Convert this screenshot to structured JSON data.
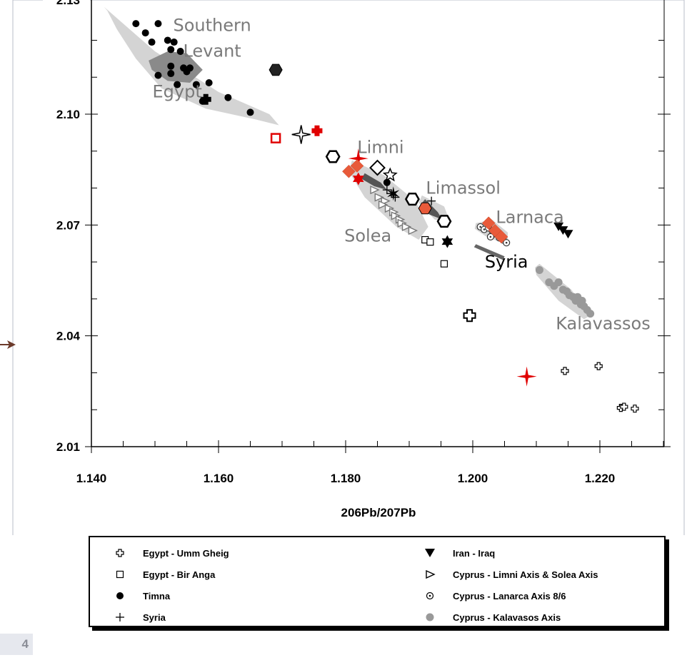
{
  "page_number": "4",
  "chart_data": {
    "type": "scatter",
    "title": "",
    "xlabel": "206Pb/207Pb",
    "ylabel": "",
    "xlim": [
      1.14,
      1.23
    ],
    "ylim": [
      2.01,
      2.125
    ],
    "x_ticks": [
      "1.140",
      "1.160",
      "1.180",
      "1.200",
      "1.220"
    ],
    "y_ticks": [
      "2.01",
      "2.04",
      "2.07",
      "2.10"
    ],
    "y_tick_values": [
      2.01,
      2.04,
      2.07,
      2.1
    ],
    "x_tick_values": [
      1.14,
      1.16,
      1.18,
      1.2,
      1.22
    ],
    "grid": false,
    "legend_position": "below plot",
    "field_labels": [
      {
        "text": "Southern",
        "x": 1.159,
        "y": 2.1225
      },
      {
        "text": "Levant",
        "x": 1.159,
        "y": 2.1155
      },
      {
        "text": "Egypt",
        "x": 1.1535,
        "y": 2.1045
      },
      {
        "text": "Limni",
        "x": 1.1855,
        "y": 2.0895
      },
      {
        "text": "Limassol",
        "x": 1.1985,
        "y": 2.0785
      },
      {
        "text": "Larnaca",
        "x": 1.209,
        "y": 2.0705
      },
      {
        "text": "Solea",
        "x": 1.1835,
        "y": 2.0655
      },
      {
        "text": "Syria",
        "x": 1.2053,
        "y": 2.0585
      },
      {
        "text": "Kalavassos",
        "x": 1.2205,
        "y": 2.0418
      }
    ],
    "fields": [
      {
        "name": "Egypt",
        "fill": "#d4d4d4",
        "outline": [
          [
            1.142,
            2.129
          ],
          [
            1.15,
            2.117
          ],
          [
            1.16,
            2.106
          ],
          [
            1.168,
            2.1
          ],
          [
            1.1695,
            2.097
          ],
          [
            1.166,
            2.0985
          ],
          [
            1.158,
            2.1015
          ],
          [
            1.151,
            2.107
          ],
          [
            1.147,
            2.115
          ],
          [
            1.144,
            2.123
          ],
          [
            1.1425,
            2.128
          ]
        ]
      },
      {
        "name": "Egypt core",
        "fill": "#8a8a8a",
        "outline": [
          [
            1.149,
            2.1145
          ],
          [
            1.152,
            2.117
          ],
          [
            1.155,
            2.1165
          ],
          [
            1.1575,
            2.112
          ],
          [
            1.1555,
            2.1085
          ],
          [
            1.152,
            2.109
          ],
          [
            1.1495,
            2.112
          ]
        ]
      },
      {
        "name": "Limni/Solea",
        "fill": "#d4d4d4",
        "outline": [
          [
            1.181,
            2.0875
          ],
          [
            1.186,
            2.0835
          ],
          [
            1.191,
            2.0765
          ],
          [
            1.193,
            2.0695
          ],
          [
            1.1915,
            2.066
          ],
          [
            1.188,
            2.0695
          ],
          [
            1.183,
            2.0775
          ],
          [
            1.1805,
            2.0845
          ]
        ]
      },
      {
        "name": "Limassol",
        "fill": "#d4d4d4",
        "outline": [
          [
            1.192,
            2.078
          ],
          [
            1.1955,
            2.075
          ],
          [
            1.1965,
            2.0705
          ],
          [
            1.194,
            2.0715
          ],
          [
            1.1915,
            2.076
          ]
        ]
      },
      {
        "name": "Limassol core",
        "fill": "#555555",
        "outline": [
          [
            1.1925,
            2.077
          ],
          [
            1.1945,
            2.0735
          ],
          [
            1.1952,
            2.0715
          ],
          [
            1.1932,
            2.0728
          ],
          [
            1.1918,
            2.0755
          ]
        ]
      },
      {
        "name": "Limni core",
        "fill": "#555555",
        "outline": [
          [
            1.183,
            2.084
          ],
          [
            1.1855,
            2.0815
          ],
          [
            1.1865,
            2.0795
          ],
          [
            1.1845,
            2.0805
          ],
          [
            1.1825,
            2.0825
          ]
        ]
      },
      {
        "name": "Larnaca",
        "fill": "#d4d4d4",
        "outline": [
          [
            1.2005,
            2.0705
          ],
          [
            1.203,
            2.0715
          ],
          [
            1.2055,
            2.068
          ],
          [
            1.2055,
            2.0645
          ],
          [
            1.202,
            2.067
          ],
          [
            1.2003,
            2.069
          ]
        ]
      },
      {
        "name": "Syria",
        "fill": "#666666",
        "outline": [
          [
            1.2005,
            2.0648
          ],
          [
            1.205,
            2.0615
          ],
          [
            1.2048,
            2.0605
          ],
          [
            1.2002,
            2.064
          ]
        ]
      },
      {
        "name": "Kalavassos",
        "fill": "#d4d4d4",
        "outline": [
          [
            1.2105,
            2.0595
          ],
          [
            1.2155,
            2.0525
          ],
          [
            1.2185,
            2.0455
          ],
          [
            1.2175,
            2.0445
          ],
          [
            1.2135,
            2.0495
          ],
          [
            1.21,
            2.0565
          ],
          [
            1.2098,
            2.0585
          ]
        ]
      }
    ],
    "series": [
      {
        "name": "Egypt - Umm Gheig",
        "marker": "open-cross",
        "color": "#000000",
        "points": [
          [
            1.2145,
            2.0305
          ],
          [
            1.2198,
            2.0318
          ],
          [
            1.2233,
            2.0205
          ],
          [
            1.2238,
            2.0208
          ],
          [
            1.2255,
            2.0203
          ]
        ]
      },
      {
        "name": "Egypt - Bir Anga",
        "marker": "open-square",
        "color": "#000000",
        "points": [
          [
            1.1925,
            2.066
          ],
          [
            1.1933,
            2.0654
          ],
          [
            1.1955,
            2.0595
          ]
        ]
      },
      {
        "name": "Timna",
        "marker": "filled-circle",
        "color": "#000000",
        "points": [
          [
            1.147,
            2.1245
          ],
          [
            1.1485,
            2.122
          ],
          [
            1.1505,
            2.1245
          ],
          [
            1.1495,
            2.1195
          ],
          [
            1.152,
            2.12
          ],
          [
            1.1525,
            2.1175
          ],
          [
            1.153,
            2.1195
          ],
          [
            1.154,
            2.117
          ],
          [
            1.1525,
            2.113
          ],
          [
            1.1505,
            2.1105
          ],
          [
            1.1525,
            2.111
          ],
          [
            1.1535,
            2.108
          ],
          [
            1.1545,
            2.1125
          ],
          [
            1.155,
            2.1115
          ],
          [
            1.1555,
            2.1125
          ],
          [
            1.1565,
            2.108
          ],
          [
            1.1585,
            2.1085
          ],
          [
            1.1575,
            2.1035
          ],
          [
            1.1615,
            2.1045
          ],
          [
            1.165,
            2.1005
          ],
          [
            1.1865,
            2.0815
          ]
        ]
      },
      {
        "name": "Syria",
        "marker": "plus",
        "color": "#000000",
        "points": [
          [
            1.1935,
            2.0765
          ],
          [
            1.1865,
            2.0795
          ],
          [
            1.1878,
            2.0775
          ],
          [
            1.1872,
            2.0785
          ]
        ]
      },
      {
        "name": "Iran - Iraq",
        "marker": "filled-down-triangle",
        "color": "#000000",
        "points": [
          [
            1.2135,
            2.0695
          ],
          [
            1.2142,
            2.0685
          ],
          [
            1.215,
            2.0675
          ]
        ]
      },
      {
        "name": "Cyprus - Limni Axis & Solea Axis",
        "marker": "open-right-triangle",
        "color": "#777777",
        "points": [
          [
            1.1845,
            2.0795
          ],
          [
            1.1852,
            2.0775
          ],
          [
            1.1862,
            2.0765
          ],
          [
            1.1858,
            2.0755
          ],
          [
            1.1868,
            2.0745
          ],
          [
            1.1875,
            2.0735
          ],
          [
            1.1878,
            2.0725
          ],
          [
            1.1885,
            2.0715
          ],
          [
            1.1888,
            2.0705
          ],
          [
            1.1895,
            2.0695
          ],
          [
            1.1905,
            2.0685
          ]
        ]
      },
      {
        "name": "Cyprus - Lanarca Axis 8/6",
        "marker": "dot-circle",
        "color": "#333333",
        "points": [
          [
            1.2012,
            2.0695
          ],
          [
            1.2018,
            2.0688
          ],
          [
            1.2025,
            2.0692
          ],
          [
            1.2031,
            2.0684
          ],
          [
            1.2035,
            2.0676
          ],
          [
            1.2042,
            2.0665
          ],
          [
            1.2048,
            2.0659
          ],
          [
            1.2053,
            2.0652
          ],
          [
            1.2028,
            2.0668
          ]
        ]
      },
      {
        "name": "Cyprus - Kalavasos Axis",
        "marker": "gray-circle",
        "color": "#999999",
        "points": [
          [
            1.2105,
            2.0578
          ],
          [
            1.212,
            2.0545
          ],
          [
            1.2128,
            2.0535
          ],
          [
            1.2135,
            2.0545
          ],
          [
            1.2142,
            2.0525
          ],
          [
            1.2148,
            2.052
          ],
          [
            1.2152,
            2.051
          ],
          [
            1.2158,
            2.0505
          ],
          [
            1.2162,
            2.0495
          ],
          [
            1.2165,
            2.0505
          ],
          [
            1.2168,
            2.0495
          ],
          [
            1.217,
            2.0485
          ],
          [
            1.2172,
            2.0495
          ],
          [
            1.2175,
            2.048
          ],
          [
            1.218,
            2.047
          ],
          [
            1.2185,
            2.046
          ]
        ]
      }
    ],
    "extra_markers": [
      {
        "marker": "filled-hexagon",
        "color": "#222222",
        "x": 1.169,
        "y": 2.112
      },
      {
        "marker": "filled-cross",
        "color": "#000000",
        "x": 1.158,
        "y": 2.104
      },
      {
        "marker": "open-square-thick",
        "color": "#e00000",
        "x": 1.169,
        "y": 2.0935
      },
      {
        "marker": "open-star4",
        "color": "#000000",
        "x": 1.173,
        "y": 2.0945
      },
      {
        "marker": "filled-cross",
        "color": "#e00000",
        "x": 1.1755,
        "y": 2.0955
      },
      {
        "marker": "open-hexagon",
        "color": "#000000",
        "x": 1.178,
        "y": 2.0885
      },
      {
        "marker": "red-star4",
        "color": "#e00000",
        "x": 1.182,
        "y": 2.088
      },
      {
        "marker": "filled-diamond",
        "color": "#e85a3a",
        "x": 1.1805,
        "y": 2.0845
      },
      {
        "marker": "filled-diamond",
        "color": "#e85a3a",
        "x": 1.1818,
        "y": 2.086
      },
      {
        "marker": "red-star6",
        "color": "#e00000",
        "x": 1.182,
        "y": 2.0825
      },
      {
        "marker": "open-diamond",
        "color": "#000000",
        "x": 1.185,
        "y": 2.0855
      },
      {
        "marker": "open-star",
        "color": "#000000",
        "x": 1.187,
        "y": 2.0835
      },
      {
        "marker": "black-star",
        "color": "#000000",
        "x": 1.1875,
        "y": 2.0785
      },
      {
        "marker": "open-hexagon",
        "color": "#000000",
        "x": 1.1905,
        "y": 2.077
      },
      {
        "marker": "filled-hexagon",
        "color": "#e85a3a",
        "x": 1.1925,
        "y": 2.0745
      },
      {
        "marker": "open-hexagon",
        "color": "#000000",
        "x": 1.1955,
        "y": 2.071
      },
      {
        "marker": "black-star6",
        "color": "#000000",
        "x": 1.196,
        "y": 2.0655
      },
      {
        "marker": "open-cross-large",
        "color": "#000000",
        "x": 1.1995,
        "y": 2.0455
      },
      {
        "marker": "filled-diamond",
        "color": "#e85a3a",
        "x": 1.2025,
        "y": 2.0705
      },
      {
        "marker": "filled-diamond",
        "color": "#e85a3a",
        "x": 1.2035,
        "y": 2.0685
      },
      {
        "marker": "filled-diamond",
        "color": "#e85a3a",
        "x": 1.2045,
        "y": 2.0668
      },
      {
        "marker": "red-star4",
        "color": "#e00000",
        "x": 1.2085,
        "y": 2.029
      }
    ],
    "legend": [
      {
        "label": "Egypt - Umm Gheig",
        "marker": "open-cross"
      },
      {
        "label": "Iran - Iraq",
        "marker": "filled-down-triangle"
      },
      {
        "label": "Egypt - Bir Anga",
        "marker": "open-square"
      },
      {
        "label": "Cyprus - Limni Axis & Solea Axis",
        "marker": "open-right-triangle"
      },
      {
        "label": "Timna",
        "marker": "filled-circle"
      },
      {
        "label": "Cyprus - Lanarca Axis 8/6",
        "marker": "dot-circle"
      },
      {
        "label": "Syria",
        "marker": "plus"
      },
      {
        "label": "Cyprus - Kalavasos Axis",
        "marker": "gray-circle"
      }
    ]
  }
}
